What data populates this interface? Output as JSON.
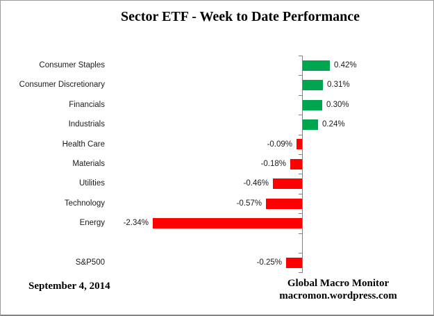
{
  "chart_data": {
    "type": "bar",
    "orientation": "horizontal",
    "title": "Sector ETF - Week to Date Performance",
    "categories": [
      "Consumer Staples",
      "Consumer Discretionary",
      "Financials",
      "Industrials",
      "Health Care",
      "Materials",
      "Utilities",
      "Technology",
      "Energy",
      "",
      "S&P500"
    ],
    "values": [
      0.42,
      0.31,
      0.3,
      0.24,
      -0.09,
      -0.18,
      -0.46,
      -0.57,
      -2.34,
      null,
      -0.25
    ],
    "value_labels": [
      "0.42%",
      "0.31%",
      "0.30%",
      "0.24%",
      "-0.09%",
      "-0.18%",
      "-0.46%",
      "-0.57%",
      "-2.34%",
      "",
      "-0.25%"
    ],
    "unit": "percent",
    "legend": "none",
    "grid": "off",
    "value_axis_tick_labels_visible": false,
    "colors": {
      "positive": "#00A550",
      "negative": "#FF0000",
      "axis": "#808080",
      "text": "#1A1A1A"
    }
  },
  "footer": {
    "date": "September 4, 2014",
    "source_line1": "Global Macro Monitor",
    "source_line2": "macromon.wordpress.com"
  }
}
